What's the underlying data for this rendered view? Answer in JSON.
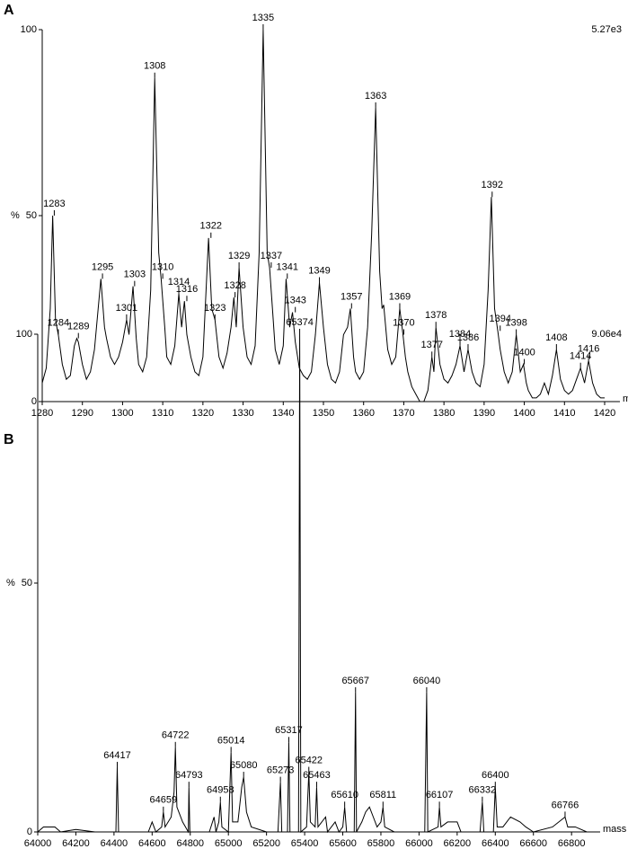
{
  "chart_data": [
    {
      "type": "line",
      "panel_label": "A",
      "scale_label": "5.27e3",
      "xlabel": "m/z",
      "ylabel": "%",
      "color": "#000000",
      "xlim": [
        1280,
        1420
      ],
      "xticks": [
        1280,
        1290,
        1300,
        1310,
        1320,
        1330,
        1340,
        1350,
        1360,
        1370,
        1380,
        1390,
        1400,
        1410,
        1420
      ],
      "ylim": [
        0,
        100
      ],
      "yticks": [
        0,
        50,
        100
      ],
      "x": [
        1280,
        1281,
        1282,
        1282.6,
        1283.3,
        1284,
        1285,
        1286,
        1287,
        1288,
        1288.6,
        1289,
        1290,
        1291,
        1292,
        1293,
        1294.6,
        1295.5,
        1296,
        1297,
        1298,
        1299,
        1300,
        1301,
        1301.6,
        1302.6,
        1303.4,
        1304,
        1305,
        1306,
        1307,
        1308,
        1309,
        1309.6,
        1310.5,
        1311,
        1312,
        1313,
        1314,
        1314.7,
        1315.4,
        1316,
        1317,
        1318,
        1319,
        1320,
        1321.4,
        1322.2,
        1323,
        1324,
        1325,
        1326,
        1327,
        1327.7,
        1328.3,
        1329,
        1330,
        1331,
        1332,
        1333,
        1334,
        1335,
        1336,
        1336.6,
        1337.5,
        1338,
        1339,
        1340,
        1340.7,
        1341.6,
        1342.3,
        1343,
        1344,
        1345,
        1346,
        1347,
        1348,
        1349,
        1350,
        1351,
        1352,
        1353,
        1354,
        1355,
        1356,
        1356.7,
        1357.5,
        1358,
        1359,
        1360,
        1361,
        1362,
        1363,
        1364,
        1364.6,
        1365,
        1366,
        1367,
        1368,
        1369,
        1369.8,
        1370.4,
        1371,
        1372,
        1373,
        1374,
        1375,
        1376,
        1377,
        1377.5,
        1378,
        1379,
        1380,
        1381,
        1382,
        1383,
        1384,
        1385,
        1386,
        1387,
        1388,
        1389,
        1390,
        1391,
        1391.8,
        1392.6,
        1393.4,
        1394,
        1395,
        1396,
        1397,
        1398,
        1399,
        1399.8,
        1400.5,
        1401,
        1402,
        1403,
        1404,
        1405,
        1406,
        1407,
        1408,
        1409,
        1410,
        1411,
        1412,
        1413,
        1414,
        1415,
        1416,
        1417,
        1418,
        1419,
        1420
      ],
      "values": [
        5,
        9,
        25,
        50,
        22,
        18,
        10,
        6,
        7,
        15,
        17,
        16,
        10,
        6,
        8,
        14,
        33,
        20,
        17,
        12,
        10,
        12,
        16,
        22,
        18,
        31,
        17,
        10,
        8,
        12,
        30,
        87,
        40,
        33,
        20,
        12,
        10,
        15,
        29,
        20,
        27,
        18,
        12,
        8,
        7,
        12,
        44,
        25,
        22,
        12,
        9,
        13,
        20,
        28,
        20,
        36,
        20,
        12,
        10,
        15,
        40,
        100,
        40,
        36,
        22,
        14,
        10,
        15,
        33,
        20,
        24,
        16,
        9,
        7,
        6,
        8,
        18,
        32,
        20,
        10,
        6,
        5,
        8,
        18,
        20,
        25,
        12,
        8,
        6,
        8,
        20,
        45,
        79,
        35,
        25,
        26,
        14,
        10,
        12,
        25,
        18,
        12,
        8,
        4,
        2,
        0,
        0,
        3,
        12,
        8,
        20,
        10,
        6,
        5,
        7,
        10,
        15,
        8,
        14,
        8,
        5,
        4,
        10,
        30,
        55,
        25,
        19,
        14,
        8,
        5,
        8,
        18,
        8,
        10,
        5,
        3,
        1,
        1,
        2,
        5,
        2,
        7,
        14,
        6,
        3,
        2,
        3,
        6,
        9,
        5,
        11,
        5,
        2,
        1,
        1
      ],
      "peaks": {
        "x": [
          1283,
          1284,
          1289,
          1295,
          1301,
          1303,
          1308,
          1310,
          1314,
          1316,
          1322,
          1323,
          1328,
          1329,
          1335,
          1337,
          1341,
          1343,
          1349,
          1357,
          1363,
          1369,
          1370,
          1377,
          1378,
          1384,
          1386,
          1392,
          1394,
          1398,
          1400,
          1408,
          1414,
          1416
        ],
        "y": [
          50,
          18,
          17,
          33,
          22,
          31,
          87,
          33,
          29,
          27,
          44,
          22,
          28,
          36,
          100,
          36,
          33,
          24,
          32,
          25,
          79,
          25,
          18,
          12,
          20,
          15,
          14,
          55,
          19,
          18,
          10,
          14,
          9,
          11
        ]
      }
    },
    {
      "type": "line",
      "panel_label": "B",
      "scale_label": "9.06e4",
      "xlabel": "mass",
      "ylabel": "%",
      "color": "#000000",
      "xlim": [
        64000,
        66950
      ],
      "xticks": [
        64000,
        64200,
        64400,
        64600,
        64800,
        65000,
        65200,
        65400,
        65600,
        65800,
        66000,
        66200,
        66400,
        66600,
        66800
      ],
      "ylim": [
        0,
        100
      ],
      "yticks": [
        0,
        50,
        100
      ],
      "x": [
        64000,
        64030,
        64060,
        64090,
        64120,
        64200,
        64300,
        64410,
        64417,
        64424,
        64580,
        64600,
        64620,
        64650,
        64659,
        64668,
        64700,
        64715,
        64722,
        64730,
        64760,
        64790,
        64793,
        64798,
        64900,
        64925,
        64935,
        64950,
        64958,
        64966,
        65000,
        65014,
        65022,
        65050,
        65070,
        65080,
        65095,
        65120,
        65200,
        65260,
        65273,
        65280,
        65310,
        65317,
        65323,
        65368,
        65374,
        65380,
        65410,
        65422,
        65430,
        65455,
        65463,
        65470,
        65510,
        65520,
        65560,
        65580,
        65600,
        65610,
        65620,
        65660,
        65667,
        65672,
        65700,
        65720,
        65740,
        65760,
        65780,
        65800,
        65811,
        65820,
        65870,
        66030,
        66040,
        66046,
        66100,
        66107,
        66115,
        66150,
        66200,
        66220,
        66320,
        66332,
        66340,
        66390,
        66400,
        66410,
        66440,
        66480,
        66530,
        66560,
        66600,
        66700,
        66766,
        66780,
        66820,
        66880,
        66900
      ],
      "values": [
        0,
        1,
        1,
        1,
        0,
        0.5,
        0,
        0,
        13,
        0,
        0,
        2,
        0,
        1,
        4,
        1,
        3,
        8,
        17,
        5,
        2,
        0,
        9,
        0,
        0,
        3,
        0,
        2,
        6,
        1,
        0,
        16,
        2,
        2,
        9,
        11,
        4,
        1,
        0,
        0,
        10,
        0,
        0,
        18,
        0,
        0,
        100,
        0,
        1,
        12,
        2,
        1,
        9,
        1,
        3,
        0,
        2,
        0,
        1,
        5,
        0,
        0,
        28,
        0,
        2,
        4,
        5,
        3,
        1,
        2,
        5,
        1,
        0,
        0,
        28,
        0,
        1,
        5,
        1,
        2,
        2,
        0,
        0,
        6,
        0,
        0,
        9,
        1,
        1,
        3,
        2,
        1,
        0,
        1,
        3,
        1,
        1,
        0,
        0
      ],
      "peaks": {
        "x": [
          64417,
          64659,
          64722,
          64793,
          64958,
          65014,
          65080,
          65273,
          65317,
          65374,
          65422,
          65463,
          65610,
          65667,
          65811,
          66040,
          66107,
          66332,
          66400,
          66766
        ],
        "y": [
          13,
          4,
          17,
          9,
          6,
          16,
          11,
          10,
          18,
          100,
          12,
          9,
          5,
          28,
          5,
          28,
          5,
          6,
          9,
          3
        ]
      }
    }
  ]
}
